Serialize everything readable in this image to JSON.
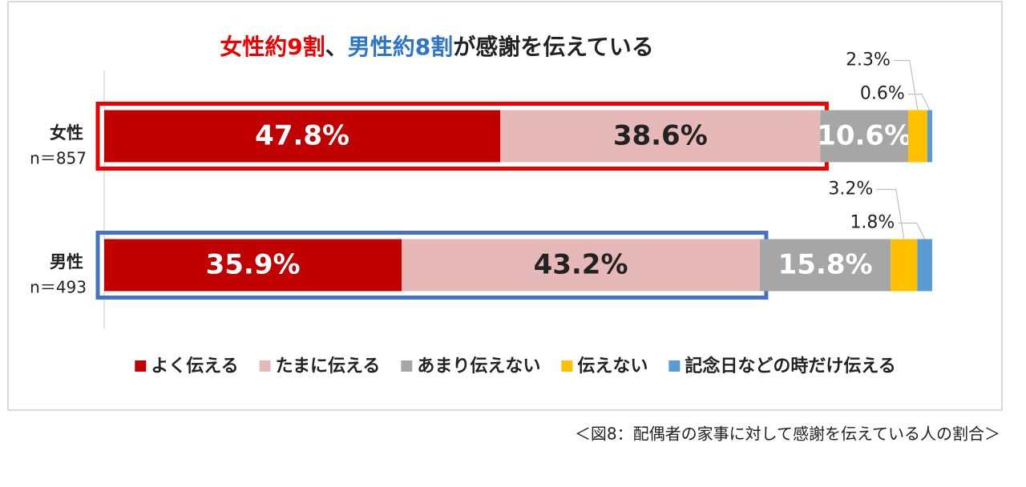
{
  "chart_data": {
    "type": "stacked-bar-horizontal",
    "title": [
      {
        "text": "女性約9割",
        "color": "#ee0000"
      },
      {
        "text": "、",
        "color": "#222222"
      },
      {
        "text": "男性約8割",
        "color": "#2e75c6"
      },
      {
        "text": "が感謝を伝えている",
        "color": "#222222"
      }
    ],
    "categories": [
      "女性",
      "男性"
    ],
    "sample_sizes": [
      "n＝857",
      "n＝493"
    ],
    "xlim": [
      0,
      100
    ],
    "series": [
      {
        "name": "よく伝える",
        "color": "#c00000",
        "values": [
          47.8,
          35.9
        ],
        "value_labels": [
          "47.8%",
          "35.9%"
        ]
      },
      {
        "name": "たまに伝える",
        "color": "#e6b9b8",
        "values": [
          38.6,
          43.2
        ],
        "value_labels": [
          "38.6%",
          "43.2%"
        ]
      },
      {
        "name": "あまり伝えない",
        "color": "#a6a6a6",
        "values": [
          10.6,
          15.8
        ],
        "value_labels": [
          "10.6%",
          "15.8%"
        ]
      },
      {
        "name": "伝えない",
        "color": "#ffc000",
        "values": [
          2.3,
          3.2
        ],
        "value_labels": [
          "2.3%",
          "3.2%"
        ]
      },
      {
        "name": "記念日などの時だけ伝える",
        "color": "#5b9bd5",
        "values": [
          0.6,
          1.8
        ],
        "value_labels": [
          "0.6%",
          "1.8%"
        ]
      }
    ],
    "caption": "＜図8：配偶者の家事に対して感謝を伝えている人の割合＞"
  }
}
